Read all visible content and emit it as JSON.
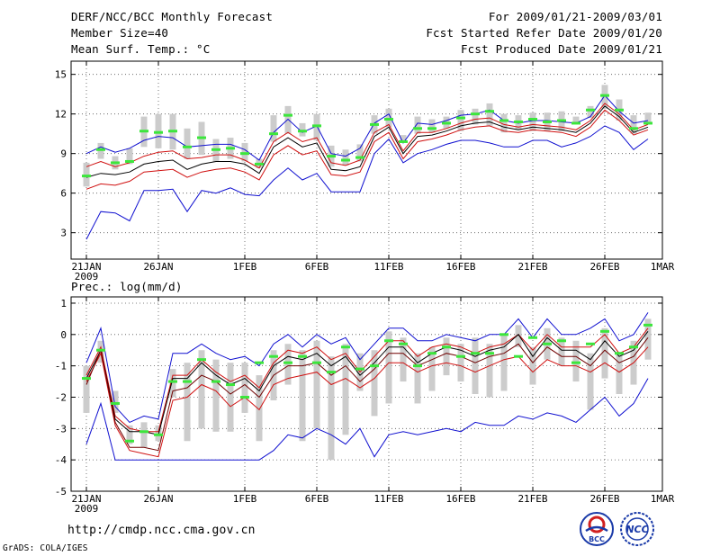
{
  "header": {
    "title": "DERF/NCC/BCC Monthly Forecast",
    "member_size": "Member Size=40",
    "variable": "Mean Surf. Temp.: °C",
    "forecast_period": "For 2009/01/21-2009/03/01",
    "started_date": "Fcst Started Refer Date 2009/01/20",
    "produced_date": "Fcst Produced Date 2009/01/21"
  },
  "footer": {
    "url": "http://cmdp.ncc.cma.gov.cn",
    "credit": "GrADS: COLA/IGES",
    "logo_left_text": "BCC",
    "logo_right_text": "NCC"
  },
  "colors": {
    "blue": "#1010d0",
    "red": "#d01010",
    "black": "#000000",
    "box_gray": "#cccccc",
    "mean_green": "#3ce63c",
    "grid": "#555555"
  },
  "chart_data": [
    {
      "type": "line",
      "title": "Mean Surf. Temp.: °C",
      "x_tick_labels": [
        "21JAN",
        "26JAN",
        "1FEB",
        "6FEB",
        "11FEB",
        "16FEB",
        "21FEB",
        "26FEB",
        "1MAR"
      ],
      "x_tick_days": [
        0,
        5,
        11,
        16,
        21,
        26,
        31,
        36,
        40
      ],
      "x_year_label": "2009",
      "ylim": [
        1,
        16
      ],
      "y_ticks": [
        3,
        6,
        9,
        12,
        15
      ],
      "grid": true,
      "series": [
        {
          "name": "upper bound",
          "color": "blue",
          "values": [
            9.0,
            9.5,
            9.1,
            9.4,
            10.0,
            10.3,
            10.2,
            9.5,
            9.6,
            9.7,
            9.7,
            9.3,
            8.5,
            10.6,
            11.6,
            10.6,
            11.1,
            9.0,
            8.8,
            9.4,
            11.3,
            12.0,
            9.8,
            11.3,
            11.2,
            11.5,
            11.9,
            12.0,
            12.3,
            11.5,
            11.3,
            11.5,
            11.5,
            11.4,
            11.3,
            11.8,
            13.4,
            12.2,
            11.3,
            11.5
          ]
        },
        {
          "name": "upper percentile",
          "color": "red",
          "values": [
            8.0,
            8.4,
            8.0,
            8.3,
            8.8,
            9.1,
            9.2,
            8.6,
            8.7,
            8.9,
            8.9,
            8.5,
            7.9,
            9.9,
            10.6,
            9.9,
            10.2,
            8.3,
            8.1,
            8.5,
            10.6,
            11.2,
            9.2,
            10.6,
            10.6,
            10.9,
            11.3,
            11.6,
            11.7,
            11.2,
            11.0,
            11.2,
            11.1,
            11.0,
            10.8,
            11.5,
            12.8,
            12.0,
            10.8,
            11.2
          ]
        },
        {
          "name": "median",
          "color": "black",
          "values": [
            7.2,
            7.5,
            7.4,
            7.6,
            8.2,
            8.4,
            8.5,
            7.8,
            8.2,
            8.4,
            8.4,
            8.2,
            7.5,
            9.5,
            10.2,
            9.5,
            9.8,
            7.8,
            7.7,
            8.0,
            10.3,
            11.0,
            9.0,
            10.3,
            10.4,
            10.7,
            11.1,
            11.3,
            11.4,
            11.0,
            10.8,
            11.0,
            10.9,
            10.8,
            10.6,
            11.3,
            12.6,
            11.8,
            10.6,
            11.0
          ]
        },
        {
          "name": "lower percentile",
          "color": "red",
          "values": [
            6.3,
            6.7,
            6.6,
            6.9,
            7.6,
            7.7,
            7.8,
            7.2,
            7.6,
            7.8,
            7.9,
            7.6,
            7.0,
            8.9,
            9.6,
            8.9,
            9.2,
            7.4,
            7.3,
            7.6,
            9.9,
            10.6,
            8.6,
            9.9,
            10.1,
            10.4,
            10.8,
            11.0,
            11.1,
            10.7,
            10.6,
            10.8,
            10.7,
            10.6,
            10.3,
            11.0,
            12.3,
            11.5,
            10.4,
            10.8
          ]
        },
        {
          "name": "lower bound",
          "color": "blue",
          "values": [
            2.5,
            4.6,
            4.5,
            3.9,
            6.2,
            6.2,
            6.3,
            4.6,
            6.2,
            6.0,
            6.4,
            5.9,
            5.8,
            7.0,
            7.9,
            7.0,
            7.5,
            6.1,
            6.1,
            6.1,
            9.0,
            10.1,
            8.3,
            9.0,
            9.3,
            9.7,
            10.0,
            10.0,
            9.8,
            9.5,
            9.5,
            10.0,
            10.0,
            9.5,
            9.8,
            10.3,
            11.1,
            10.6,
            9.3,
            10.1
          ]
        }
      ],
      "boxes": {
        "low": [
          6.5,
          8.6,
          7.8,
          8.2,
          9.5,
          9.4,
          9.3,
          8.6,
          8.9,
          8.4,
          8.6,
          8.4,
          7.9,
          9.9,
          10.5,
          10.3,
          10.0,
          8.0,
          8.1,
          8.4,
          10.5,
          11.0,
          9.9,
          10.5,
          10.6,
          10.9,
          10.7,
          11.2,
          11.1,
          10.6,
          10.8,
          10.7,
          10.7,
          10.7,
          11.2,
          11.7,
          12.4,
          11.5,
          10.5,
          11.2
        ],
        "high": [
          8.3,
          9.8,
          8.8,
          9.4,
          11.8,
          12.0,
          12.0,
          10.9,
          11.4,
          10.1,
          10.2,
          9.8,
          8.6,
          11.9,
          12.6,
          11.3,
          12.0,
          9.6,
          9.3,
          9.7,
          11.9,
          12.4,
          10.4,
          11.8,
          11.6,
          11.8,
          12.3,
          12.4,
          12.8,
          12.0,
          11.9,
          12.1,
          12.1,
          12.2,
          11.8,
          12.6,
          14.2,
          13.1,
          11.9,
          12.1
        ]
      },
      "ensemble_mean": [
        7.3,
        9.3,
        8.3,
        8.4,
        10.7,
        10.6,
        10.7,
        9.5,
        10.2,
        9.3,
        9.4,
        9.0,
        8.2,
        10.5,
        11.9,
        10.7,
        11.1,
        8.8,
        8.5,
        8.7,
        11.2,
        11.6,
        9.9,
        10.9,
        10.9,
        11.3,
        11.7,
        12.0,
        12.2,
        11.5,
        11.4,
        11.6,
        11.4,
        11.5,
        11.3,
        12.3,
        13.4,
        12.3,
        10.9,
        11.3
      ]
    },
    {
      "type": "line",
      "title": "Prec.: log(mm/d)",
      "x_tick_labels": [
        "21JAN",
        "26JAN",
        "1FEB",
        "6FEB",
        "11FEB",
        "16FEB",
        "21FEB",
        "26FEB",
        "1MAR"
      ],
      "x_tick_days": [
        0,
        5,
        11,
        16,
        21,
        26,
        31,
        36,
        40
      ],
      "x_year_label": "2009",
      "ylim": [
        -5,
        1.2
      ],
      "y_ticks": [
        -5,
        -4,
        -3,
        -2,
        -1,
        0,
        1
      ],
      "grid": true,
      "series": [
        {
          "name": "upper bound",
          "color": "blue",
          "values": [
            -0.9,
            0.2,
            -2.3,
            -2.8,
            -2.6,
            -2.7,
            -0.6,
            -0.6,
            -0.3,
            -0.6,
            -0.8,
            -0.7,
            -1.0,
            -0.3,
            0.0,
            -0.4,
            0.0,
            -0.3,
            -0.1,
            -0.8,
            -0.3,
            0.2,
            0.2,
            -0.2,
            -0.2,
            0.0,
            -0.1,
            -0.2,
            0.0,
            0.0,
            0.5,
            -0.1,
            0.5,
            0.0,
            0.0,
            0.2,
            0.5,
            -0.2,
            0.0,
            0.7
          ]
        },
        {
          "name": "upper percentile",
          "color": "red",
          "values": [
            -1.3,
            -0.4,
            -2.6,
            -3.0,
            -3.1,
            -3.1,
            -1.3,
            -1.3,
            -0.8,
            -1.2,
            -1.5,
            -1.3,
            -1.7,
            -0.9,
            -0.5,
            -0.6,
            -0.4,
            -0.8,
            -0.6,
            -1.2,
            -0.7,
            -0.2,
            -0.2,
            -0.7,
            -0.4,
            -0.3,
            -0.4,
            -0.6,
            -0.4,
            -0.3,
            0.0,
            -0.5,
            0.0,
            -0.4,
            -0.4,
            -0.4,
            0.0,
            -0.6,
            -0.4,
            0.2
          ]
        },
        {
          "name": "median",
          "color": "black",
          "values": [
            -1.4,
            -0.5,
            -2.7,
            -3.1,
            -3.1,
            -3.2,
            -1.4,
            -1.4,
            -0.9,
            -1.3,
            -1.6,
            -1.4,
            -1.8,
            -1.0,
            -0.7,
            -0.8,
            -0.6,
            -1.0,
            -0.7,
            -1.3,
            -0.9,
            -0.4,
            -0.4,
            -0.9,
            -0.6,
            -0.4,
            -0.5,
            -0.7,
            -0.5,
            -0.4,
            0.0,
            -0.7,
            -0.1,
            -0.5,
            -0.5,
            -0.8,
            -0.2,
            -0.7,
            -0.5,
            0.1
          ]
        },
        {
          "name": "lower percentile",
          "color": "red",
          "values": [
            -1.5,
            -0.6,
            -2.9,
            -3.7,
            -3.8,
            -3.9,
            -2.1,
            -2.0,
            -1.6,
            -1.8,
            -2.3,
            -2.0,
            -2.4,
            -1.6,
            -1.4,
            -1.3,
            -1.2,
            -1.6,
            -1.4,
            -1.7,
            -1.4,
            -0.9,
            -0.9,
            -1.2,
            -1.0,
            -0.9,
            -1.0,
            -1.2,
            -1.0,
            -0.8,
            -0.7,
            -1.2,
            -0.8,
            -1.0,
            -1.0,
            -1.2,
            -0.9,
            -1.2,
            -0.9,
            -0.4
          ]
        },
        {
          "name": "lower bound",
          "color": "blue",
          "values": [
            -3.5,
            -2.2,
            -4.0,
            -4.0,
            -4.0,
            -4.0,
            -4.0,
            -4.0,
            -4.0,
            -4.0,
            -4.0,
            -4.0,
            -4.0,
            -3.7,
            -3.2,
            -3.3,
            -3.0,
            -3.2,
            -3.5,
            -3.0,
            -3.9,
            -3.2,
            -3.1,
            -3.2,
            -3.1,
            -3.0,
            -3.1,
            -2.8,
            -2.9,
            -2.9,
            -2.6,
            -2.7,
            -2.5,
            -2.6,
            -2.8,
            -2.4,
            -2.0,
            -2.6,
            -2.2,
            -1.4
          ]
        },
        {
          "name": "dark red mean",
          "color": "dark-red",
          "values": [
            -1.6,
            -0.5,
            -2.8,
            -3.6,
            -3.6,
            -3.7,
            -1.8,
            -1.7,
            -1.3,
            -1.5,
            -1.9,
            -1.6,
            -2.0,
            -1.3,
            -1.0,
            -1.0,
            -0.9,
            -1.3,
            -1.0,
            -1.5,
            -1.1,
            -0.6,
            -0.6,
            -1.0,
            -0.8,
            -0.6,
            -0.7,
            -0.9,
            -0.7,
            -0.6,
            -0.3,
            -0.9,
            -0.4,
            -0.7,
            -0.7,
            -1.0,
            -0.5,
            -0.9,
            -0.7,
            -0.1
          ]
        }
      ],
      "boxes": {
        "low": [
          -2.5,
          -0.9,
          -2.5,
          -3.5,
          -3.6,
          -3.4,
          -2.0,
          -3.4,
          -3.0,
          -3.1,
          -3.1,
          -2.5,
          -3.4,
          -2.1,
          -1.6,
          -3.4,
          -3.0,
          -4.0,
          -3.2,
          -1.8,
          -2.6,
          -2.2,
          -1.5,
          -2.2,
          -1.8,
          -1.3,
          -1.5,
          -1.9,
          -2.0,
          -1.8,
          -0.4,
          -1.6,
          -0.8,
          -1.0,
          -1.5,
          -2.4,
          -1.4,
          -1.9,
          -1.6,
          -0.8
        ],
        "high": [
          -1.0,
          -0.2,
          -1.8,
          -2.9,
          -2.8,
          -2.9,
          -1.1,
          -0.9,
          -0.5,
          -0.8,
          -0.9,
          -0.9,
          -1.3,
          -0.5,
          -0.3,
          -0.5,
          -0.2,
          -0.7,
          -0.3,
          -0.6,
          -0.5,
          0.1,
          -0.1,
          -0.6,
          -0.4,
          -0.1,
          -0.3,
          -0.1,
          -0.3,
          0.0,
          0.3,
          -0.4,
          0.2,
          -0.1,
          -0.2,
          -0.6,
          0.2,
          -0.6,
          -0.2,
          0.5
        ]
      },
      "ensemble_mean": [
        -1.4,
        -0.5,
        -2.2,
        -3.4,
        -3.1,
        -3.2,
        -1.5,
        -1.5,
        -0.8,
        -1.5,
        -1.6,
        -2.0,
        -0.9,
        -0.7,
        -0.9,
        -0.7,
        -0.9,
        -1.2,
        -0.4,
        -1.1,
        -1.0,
        -0.2,
        -0.3,
        -1.0,
        -0.6,
        -0.4,
        -0.7,
        -0.6,
        -0.6,
        0.0,
        -0.7,
        -0.1,
        -0.3,
        -0.2,
        -0.9,
        -0.3,
        0.1,
        -0.6,
        -0.4,
        0.3
      ]
    }
  ]
}
